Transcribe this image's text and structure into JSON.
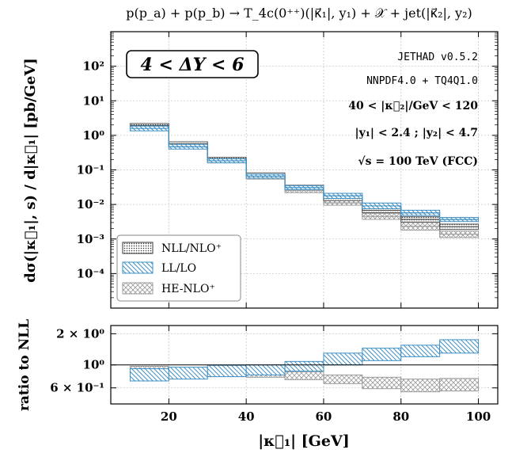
{
  "figure": {
    "title": "p(p_a) + p(p_b) → T_4c(0⁺⁺)(|κ⃗₁|, y₁) + 𝒳 + jet(|κ⃗₂|, y₂)",
    "rapidity_box": "4 < ΔY < 6",
    "annotations": [
      "JETHAD v0.5.2",
      "NNPDF4.0 + TQ4Q1.0",
      "40 < |κ⃗₂|/GeV < 120",
      "|y₁| < 2.4 ;  |y₂| < 4.7",
      "√s = 100 TeV (FCC)"
    ]
  },
  "colors": {
    "nll": "#555555",
    "ll": "#3e8fc4",
    "he": "#9a9a9a",
    "grid": "#c8c8c8",
    "axis": "#000000"
  },
  "chart_data": [
    {
      "type": "area",
      "panel": "main",
      "xlabel": "|κ⃗₁| [GeV]",
      "ylabel": "dσ(|κ⃗₁|, s) / d|κ⃗₁| [pb/GeV]",
      "xlim": [
        5,
        105
      ],
      "ylim": [
        1e-05,
        1000
      ],
      "yscale": "log",
      "grid": true,
      "legend_position": "bottom-left",
      "bins": [
        [
          10,
          20
        ],
        [
          20,
          30
        ],
        [
          30,
          40
        ],
        [
          40,
          50
        ],
        [
          50,
          60
        ],
        [
          60,
          70
        ],
        [
          70,
          80
        ],
        [
          80,
          90
        ],
        [
          90,
          100
        ]
      ],
      "xticks": [
        "20",
        "40",
        "60",
        "80",
        "100"
      ],
      "yticks": [
        "10²",
        "10¹",
        "10⁰",
        "10⁻¹",
        "10⁻²",
        "10⁻³",
        "10⁻⁴"
      ],
      "series": [
        {
          "name": "NLL/NLO⁺",
          "style": "dots",
          "low": [
            1.7,
            0.5,
            0.18,
            0.065,
            0.028,
            0.013,
            0.0058,
            0.0031,
            0.0019
          ],
          "high": [
            2.2,
            0.65,
            0.23,
            0.082,
            0.036,
            0.018,
            0.0078,
            0.0044,
            0.0027
          ]
        },
        {
          "name": "LL/LO",
          "style": "hatch",
          "low": [
            1.35,
            0.4,
            0.16,
            0.058,
            0.027,
            0.015,
            0.0075,
            0.0048,
            0.0032
          ],
          "high": [
            1.85,
            0.55,
            0.21,
            0.075,
            0.035,
            0.021,
            0.011,
            0.0068,
            0.0042
          ]
        },
        {
          "name": "HE-NLO⁺",
          "style": "cross",
          "low": [
            1.5,
            0.45,
            0.16,
            0.054,
            0.022,
            0.0095,
            0.0037,
            0.0018,
            0.0011
          ],
          "high": [
            2.0,
            0.6,
            0.21,
            0.07,
            0.03,
            0.013,
            0.0055,
            0.003,
            0.0017
          ]
        }
      ]
    },
    {
      "type": "area",
      "panel": "ratio",
      "xlabel": "|κ⃗₁| [GeV]",
      "ylabel": "ratio to NLL",
      "xlim": [
        5,
        105
      ],
      "ylim": [
        0.42,
        2.4
      ],
      "yscale": "log",
      "grid": true,
      "yticks": [
        "2 × 10⁰",
        "10⁰",
        "6 × 10⁻¹"
      ],
      "series": [
        {
          "name": "LL/LO",
          "low": [
            0.7,
            0.73,
            0.77,
            0.8,
            0.87,
            1.0,
            1.1,
            1.2,
            1.3
          ],
          "high": [
            0.92,
            0.95,
            0.99,
            1.0,
            1.08,
            1.3,
            1.45,
            1.55,
            1.75
          ]
        },
        {
          "name": "HE-NLO⁺",
          "low": [
            0.78,
            0.8,
            0.77,
            0.76,
            0.72,
            0.66,
            0.59,
            0.55,
            0.56
          ],
          "high": [
            0.97,
            0.94,
            0.92,
            0.9,
            0.86,
            0.8,
            0.76,
            0.73,
            0.74
          ]
        }
      ]
    }
  ]
}
